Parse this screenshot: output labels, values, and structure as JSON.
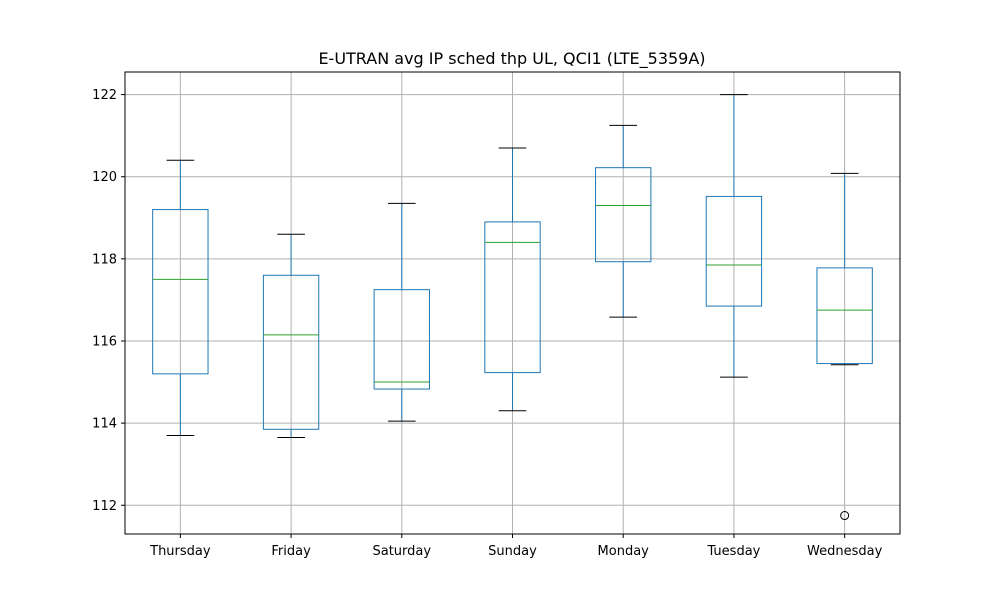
{
  "chart_data": {
    "type": "box",
    "title": "E-UTRAN avg IP sched thp UL, QCI1 (LTE_5359A)",
    "xlabel": "",
    "ylabel": "",
    "ylim": [
      111.3,
      122.55
    ],
    "yticks": [
      112,
      114,
      116,
      118,
      120,
      122
    ],
    "grid": true,
    "categories": [
      "Thursday",
      "Friday",
      "Saturday",
      "Sunday",
      "Monday",
      "Tuesday",
      "Wednesday"
    ],
    "boxes": [
      {
        "category": "Thursday",
        "whisker_low": 113.7,
        "q1": 115.2,
        "median": 117.5,
        "q3": 119.2,
        "whisker_high": 120.4,
        "outliers": []
      },
      {
        "category": "Friday",
        "whisker_low": 113.65,
        "q1": 113.85,
        "median": 116.15,
        "q3": 117.6,
        "whisker_high": 118.6,
        "outliers": []
      },
      {
        "category": "Saturday",
        "whisker_low": 114.05,
        "q1": 114.83,
        "median": 115.0,
        "q3": 117.25,
        "whisker_high": 119.35,
        "outliers": []
      },
      {
        "category": "Sunday",
        "whisker_low": 114.3,
        "q1": 115.23,
        "median": 118.4,
        "q3": 118.9,
        "whisker_high": 120.7,
        "outliers": []
      },
      {
        "category": "Monday",
        "whisker_low": 116.58,
        "q1": 117.93,
        "median": 119.3,
        "q3": 120.22,
        "whisker_high": 121.25,
        "outliers": []
      },
      {
        "category": "Tuesday",
        "whisker_low": 115.12,
        "q1": 116.85,
        "median": 117.85,
        "q3": 119.52,
        "whisker_high": 122.0,
        "outliers": []
      },
      {
        "category": "Wednesday",
        "whisker_low": 115.42,
        "q1": 115.45,
        "median": 116.75,
        "q3": 117.78,
        "whisker_high": 120.08,
        "outliers": [
          111.75
        ]
      }
    ],
    "colors": {
      "box": "#1f77b4",
      "median": "#2ca02c",
      "whisker_cap": "#000000",
      "grid": "#b0b0b0",
      "axes": "#000000"
    }
  }
}
